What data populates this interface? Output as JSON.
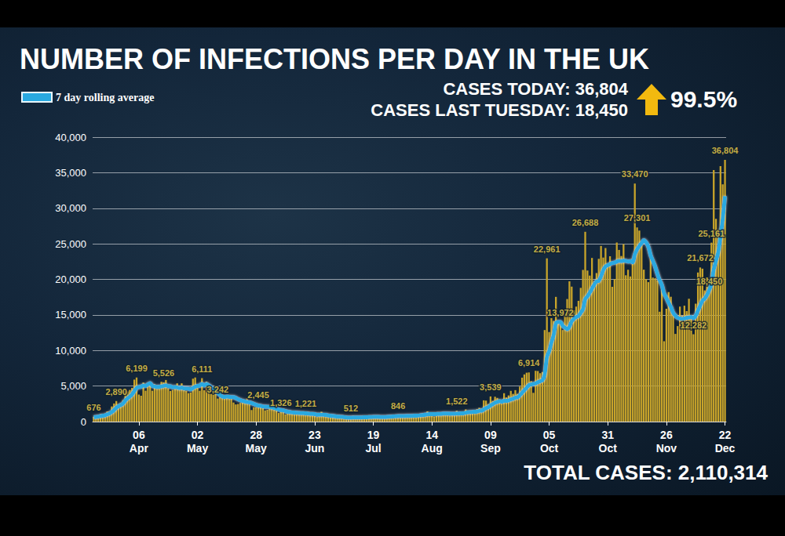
{
  "chart_data": {
    "type": "bar",
    "title": "NUMBER OF INFECTIONS PER DAY IN THE UK",
    "annotations": [
      "CASES TODAY: 36,804",
      "CASES LAST TUESDAY: 18,450",
      "99.5%",
      "TOTAL CASES: 2,110,314"
    ],
    "categories": [
      null,
      null,
      null,
      null,
      null,
      null,
      null,
      null,
      null,
      null,
      null,
      null,
      null,
      null,
      null,
      null,
      null,
      null,
      null,
      null,
      "06 Apr",
      null,
      null,
      null,
      null,
      null,
      null,
      null,
      null,
      null,
      null,
      null,
      null,
      null,
      null,
      null,
      null,
      null,
      null,
      null,
      null,
      null,
      null,
      null,
      null,
      null,
      "02 May",
      null,
      null,
      null,
      null,
      null,
      null,
      null,
      null,
      null,
      null,
      null,
      null,
      null,
      null,
      null,
      null,
      null,
      null,
      null,
      null,
      null,
      null,
      null,
      null,
      null,
      "28 May",
      null,
      null,
      null,
      null,
      null,
      null,
      null,
      null,
      null,
      null,
      null,
      null,
      null,
      null,
      null,
      null,
      null,
      null,
      null,
      null,
      null,
      null,
      null,
      null,
      null,
      "23 Jun",
      null,
      null,
      null,
      null,
      null,
      null,
      null,
      null,
      null,
      null,
      null,
      null,
      null,
      null,
      null,
      null,
      null,
      null,
      null,
      null,
      null,
      null,
      null,
      null,
      null,
      "19 Jul",
      null,
      null,
      null,
      null,
      null,
      null,
      null,
      null,
      null,
      null,
      null,
      null,
      null,
      null,
      null,
      null,
      null,
      null,
      null,
      null,
      null,
      null,
      null,
      null,
      null,
      "14 Aug",
      null,
      null,
      null,
      null,
      null,
      null,
      null,
      null,
      null,
      null,
      null,
      null,
      null,
      null,
      null,
      null,
      null,
      null,
      null,
      null,
      null,
      null,
      null,
      null,
      null,
      "09 Sep",
      null,
      null,
      null,
      null,
      null,
      null,
      null,
      null,
      null,
      null,
      null,
      null,
      null,
      null,
      null,
      null,
      null,
      null,
      null,
      null,
      null,
      null,
      null,
      null,
      null,
      "05 Oct",
      null,
      null,
      null,
      null,
      null,
      null,
      null,
      null,
      null,
      null,
      null,
      null,
      null,
      null,
      null,
      null,
      null,
      null,
      null,
      null,
      null,
      null,
      null,
      null,
      null,
      "31 Oct",
      null,
      null,
      null,
      null,
      null,
      null,
      null,
      null,
      null,
      null,
      null,
      null,
      null,
      null,
      null,
      null,
      null,
      null,
      null,
      null,
      null,
      null,
      null,
      null,
      null,
      "26 Nov",
      null,
      null,
      null,
      null,
      null,
      null,
      null,
      null,
      null,
      null,
      null,
      null,
      null,
      null,
      null,
      null,
      null,
      null,
      null,
      null,
      null,
      null,
      null,
      null,
      null,
      "22 Dec"
    ],
    "series": [
      {
        "type": "bar",
        "color": "#c8a42a",
        "data_labels": true,
        "values": [
          676,
          643,
          714,
          1035,
          665,
          967,
          1427,
          1452,
          2129,
          2546,
          2890,
          2433,
          2619,
          3009,
          4324,
          4244,
          4450,
          4735,
          5903,
          6199,
          3802,
          3634,
          5491,
          4344,
          5195,
          5288,
          4342,
          5252,
          4603,
          4617,
          5599,
          5526,
          5850,
          4676,
          4301,
          4451,
          4583,
          5386,
          4913,
          5385,
          4463,
          4309,
          3996,
          4076,
          6032,
          6201,
          4806,
          4339,
          6111,
          4406,
          5614,
          4649,
          3896,
          3923,
          3877,
          3242,
          3403,
          3446,
          3562,
          3451,
          3560,
          3450,
          2684,
          2412,
          2472,
          2615,
          2959,
          2940,
          3287,
          2409,
          1625,
          2004,
          2013,
          2445,
          2095,
          1936,
          1570,
          1653,
          1871,
          1805,
          1650,
          1557,
          1205,
          1326,
          1387,
          1003,
          1266,
          1541,
          1425,
          1514,
          1056,
          1346,
          1115,
          1218,
          1221,
          1295,
          958,
          1205,
          921,
          653,
          1118,
          1380,
          890,
          901,
          815,
          689,
          829,
          576,
          544,
          624,
          516,
          352,
          581,
          630,
          512,
          820,
          650,
          530,
          598,
          650,
          538,
          667,
          642,
          687,
          827,
          726,
          560,
          445,
          579,
          769,
          760,
          767,
          798,
          685,
          581,
          846,
          880,
          743,
          744,
          938,
          670,
          892,
          950,
          871,
          758,
          1062,
          1148,
          1009,
          1441,
          1012,
          1040,
          713,
          1089,
          1182,
          1033,
          1288,
          1041,
          1040,
          853,
          1041,
          1182,
          1522,
          1048,
          1276,
          1108,
          1715,
          1406,
          1295,
          1508,
          1322,
          1735,
          1940,
          1813,
          2988,
          2948,
          2460,
          3539,
          2919,
          3497,
          3330,
          3105,
          2621,
          3991,
          3395,
          3679,
          4322,
          3899,
          4422,
          3899,
          4926,
          6178,
          6634,
          6874,
          6914,
          5693,
          4044,
          7143,
          7108,
          6804,
          6968,
          12872,
          22961,
          12594,
          14542,
          14162,
          17540,
          13864,
          13972,
          12872,
          15166,
          17234,
          19724,
          18980,
          15650,
          16171,
          16982,
          18804,
          21331,
          26688,
          21242,
          20530,
          23012,
          19790,
          20890,
          22885,
          24701,
          23065,
          24405,
          21915,
          23254,
          18950,
          20018,
          25177,
          24141,
          23287,
          24957,
          20572,
          21350,
          20412,
          22950,
          33470,
          27301,
          26860,
          24962,
          21363,
          20051,
          19609,
          22915,
          20252,
          20155,
          19875,
          15450,
          18662,
          11299,
          15871,
          18213,
          17555,
          15166,
          12330,
          13430,
          16170,
          14879,
          16298,
          15539,
          17272,
          14718,
          12282,
          16578,
          20964,
          21672,
          21502,
          18447,
          20263,
          18450,
          25161,
          35383,
          28507,
          27052,
          35928,
          33364,
          36804
        ],
        "value_labels": [
          "676",
          null,
          null,
          null,
          null,
          null,
          null,
          null,
          null,
          null,
          "2,890",
          null,
          null,
          null,
          null,
          null,
          null,
          null,
          null,
          "6,199",
          null,
          null,
          null,
          null,
          null,
          null,
          null,
          null,
          null,
          null,
          null,
          "5,526",
          null,
          null,
          null,
          null,
          null,
          null,
          null,
          null,
          null,
          null,
          null,
          null,
          null,
          null,
          null,
          null,
          "6,111",
          null,
          null,
          null,
          null,
          null,
          null,
          "3,242",
          null,
          null,
          null,
          null,
          null,
          null,
          null,
          null,
          null,
          null,
          null,
          null,
          null,
          null,
          null,
          null,
          null,
          "2,445",
          null,
          null,
          null,
          null,
          null,
          null,
          null,
          null,
          null,
          "1,326",
          null,
          null,
          null,
          null,
          null,
          null,
          null,
          null,
          null,
          null,
          "1,221",
          null,
          null,
          null,
          null,
          null,
          null,
          null,
          null,
          null,
          null,
          null,
          null,
          null,
          null,
          null,
          null,
          null,
          null,
          null,
          "512",
          null,
          null,
          null,
          null,
          null,
          null,
          null,
          null,
          null,
          null,
          null,
          null,
          null,
          null,
          null,
          null,
          null,
          null,
          null,
          null,
          "846",
          null,
          null,
          null,
          null,
          null,
          null,
          null,
          null,
          null,
          null,
          null,
          null,
          null,
          null,
          null,
          null,
          null,
          null,
          null,
          null,
          null,
          null,
          null,
          null,
          null,
          "1,522",
          null,
          null,
          null,
          null,
          null,
          null,
          null,
          null,
          null,
          null,
          null,
          null,
          null,
          null,
          "3,539",
          null,
          null,
          null,
          null,
          null,
          null,
          null,
          null,
          null,
          null,
          null,
          null,
          null,
          null,
          null,
          null,
          "6,914",
          null,
          null,
          null,
          null,
          null,
          null,
          null,
          "22,961",
          null,
          null,
          null,
          null,
          null,
          "13,972",
          null,
          null,
          null,
          null,
          null,
          null,
          null,
          null,
          null,
          null,
          "26,688",
          null,
          null,
          null,
          null,
          null,
          null,
          null,
          null,
          null,
          null,
          null,
          null,
          null,
          null,
          null,
          null,
          null,
          null,
          null,
          null,
          null,
          "33,470",
          "27,301",
          null,
          null,
          null,
          null,
          null,
          null,
          null,
          null,
          null,
          null,
          null,
          null,
          null,
          null,
          null,
          null,
          null,
          null,
          null,
          null,
          null,
          null,
          null,
          null,
          "12,282",
          null,
          null,
          "21,672",
          null,
          null,
          null,
          "18,450",
          "25,161",
          null,
          null,
          null,
          null,
          null,
          "36,804"
        ]
      },
      {
        "name": "7 day rolling average",
        "type": "line",
        "color": "#29a9e0",
        "values": [
          600,
          650,
          700,
          780,
          820,
          880,
          1020,
          1130,
          1340,
          1610,
          1930,
          2170,
          2330,
          2530,
          2960,
          3260,
          3510,
          3820,
          4280,
          4740,
          4870,
          4910,
          5070,
          5010,
          5210,
          5410,
          5020,
          4950,
          4870,
          4880,
          4940,
          5030,
          5090,
          4960,
          4950,
          4830,
          4840,
          4810,
          4700,
          4780,
          4660,
          4660,
          4640,
          4530,
          4730,
          4900,
          5010,
          5050,
          5290,
          5080,
          5290,
          5080,
          4860,
          4560,
          4310,
          4020,
          3740,
          3530,
          3460,
          3510,
          3480,
          3450,
          3450,
          3320,
          3150,
          3020,
          2900,
          2820,
          2750,
          2720,
          2600,
          2480,
          2360,
          2250,
          2220,
          2130,
          2090,
          2080,
          2060,
          1970,
          1920,
          1800,
          1700,
          1620,
          1580,
          1460,
          1380,
          1340,
          1280,
          1270,
          1250,
          1210,
          1180,
          1180,
          1160,
          1140,
          1080,
          1080,
          1040,
          970,
          960,
          970,
          950,
          930,
          850,
          830,
          790,
          740,
          700,
          680,
          660,
          620,
          580,
          550,
          540,
          580,
          590,
          590,
          580,
          590,
          600,
          610,
          620,
          630,
          660,
          660,
          670,
          640,
          630,
          620,
          650,
          680,
          700,
          720,
          740,
          760,
          780,
          780,
          780,
          800,
          790,
          800,
          820,
          830,
          840,
          880,
          920,
          960,
          1030,
          1040,
          1050,
          1050,
          1060,
          1080,
          1080,
          1120,
          1130,
          1140,
          1110,
          1100,
          1100,
          1140,
          1120,
          1160,
          1160,
          1250,
          1290,
          1320,
          1350,
          1380,
          1410,
          1500,
          1520,
          1700,
          1890,
          2020,
          2280,
          2450,
          2660,
          2770,
          2860,
          2800,
          2930,
          2920,
          2970,
          3120,
          3200,
          3370,
          3400,
          3700,
          4060,
          4410,
          4760,
          5110,
          5220,
          5290,
          5370,
          5540,
          5680,
          5810,
          6620,
          9050,
          9900,
          11110,
          12160,
          13830,
          14000,
          14000,
          13470,
          13220,
          13000,
          13340,
          14090,
          14470,
          14700,
          14850,
          15300,
          15800,
          17230,
          17600,
          18120,
          18700,
          19260,
          19710,
          19780,
          20420,
          21300,
          21800,
          22000,
          22150,
          22300,
          22350,
          22500,
          22600,
          22550,
          22650,
          22600,
          22500,
          22550,
          22400,
          23500,
          24200,
          24700,
          25100,
          25500,
          25200,
          24600,
          23400,
          22600,
          21800,
          20800,
          19900,
          19200,
          18000,
          17400,
          16700,
          16100,
          15300,
          14900,
          14600,
          14500,
          14450,
          14500,
          14600,
          14650,
          14700,
          14550,
          14900,
          15600,
          16300,
          17000,
          17300,
          17800,
          18500,
          19400,
          21400,
          22600,
          23800,
          26000,
          28500,
          31700
        ]
      }
    ],
    "ylim": [
      0,
      40000
    ],
    "yticks": [
      0,
      {
        "value": 5000,
        "label": "5,000"
      },
      {
        "value": 10000,
        "label": "10,000"
      },
      {
        "value": 15000,
        "label": "15,000"
      },
      {
        "value": 20000,
        "label": "20,000"
      },
      {
        "value": 25000,
        "label": "25,000"
      },
      {
        "value": 30000,
        "label": "30,000"
      },
      {
        "value": 35000,
        "label": "35,000"
      },
      {
        "value": 40000,
        "label": "40,000"
      }
    ],
    "grid": true,
    "legend": "top-left"
  }
}
